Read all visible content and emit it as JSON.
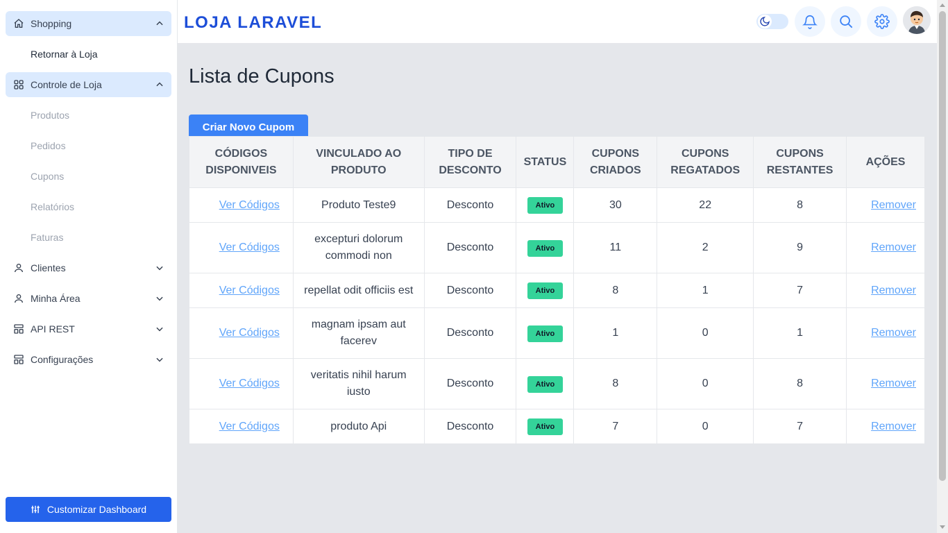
{
  "sidebar": {
    "groups": [
      {
        "label": "Shopping",
        "icon": "home-icon"
      },
      {
        "label": "Controle de Loja",
        "icon": "grid-icon"
      },
      {
        "label": "Clientes",
        "icon": "user-icon"
      },
      {
        "label": "Minha Área",
        "icon": "user-icon"
      },
      {
        "label": "API REST",
        "icon": "layout-icon"
      },
      {
        "label": "Configurações",
        "icon": "layout-icon"
      }
    ],
    "shopping_items": [
      "Retornar à Loja"
    ],
    "store_items": [
      "Produtos",
      "Pedidos",
      "Cupons",
      "Relatórios",
      "Faturas"
    ],
    "customize_label": "Customizar Dashboard"
  },
  "header": {
    "brand": "LOJA LARAVEL"
  },
  "page": {
    "title": "Lista de Cupons",
    "create_button": "Criar Novo Cupom"
  },
  "table": {
    "headers": [
      [
        "CÓDIGOS",
        "DISPONIVEIS"
      ],
      [
        "VINCULADO AO",
        "PRODUTO"
      ],
      [
        "TIPO DE",
        "DESCONTO"
      ],
      [
        "STATUS"
      ],
      [
        "CUPONS",
        "CRIADOS"
      ],
      [
        "CUPONS",
        "REGATADOS"
      ],
      [
        "CUPONS",
        "RESTANTES"
      ],
      [
        "AÇÕES"
      ]
    ],
    "link_label": "Ver Códigos",
    "remove_label": "Remover",
    "rows": [
      {
        "product": [
          "Produto Teste9"
        ],
        "type": "Desconto",
        "status": "Ativo",
        "created": "30",
        "redeemed": "22",
        "remaining": "8"
      },
      {
        "product": [
          "excepturi dolorum",
          "commodi non"
        ],
        "type": "Desconto",
        "status": "Ativo",
        "created": "11",
        "redeemed": "2",
        "remaining": "9"
      },
      {
        "product": [
          "repellat odit officiis est"
        ],
        "type": "Desconto",
        "status": "Ativo",
        "created": "8",
        "redeemed": "1",
        "remaining": "7"
      },
      {
        "product": [
          "magnam ipsam aut",
          "facerev"
        ],
        "type": "Desconto",
        "status": "Ativo",
        "created": "1",
        "redeemed": "0",
        "remaining": "1"
      },
      {
        "product": [
          "veritatis nihil harum",
          "iusto"
        ],
        "type": "Desconto",
        "status": "Ativo",
        "created": "8",
        "redeemed": "0",
        "remaining": "8"
      },
      {
        "product": [
          "produto Api"
        ],
        "type": "Desconto",
        "status": "Ativo",
        "created": "7",
        "redeemed": "0",
        "remaining": "7"
      }
    ]
  },
  "colors": {
    "brand": "#1d4ed8",
    "primary_button": "#3b82f6",
    "active_badge": "#34d399",
    "link": "#60a5fa"
  }
}
